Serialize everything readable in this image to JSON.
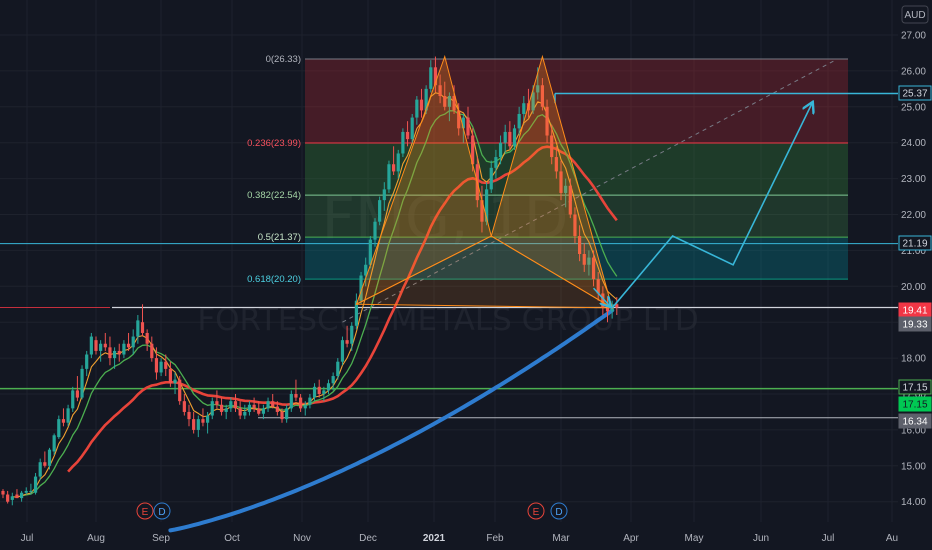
{
  "currency": "AUD",
  "watermark": {
    "symbol": "FMG, 1D",
    "name": "FORTESCUE METALS GROUP LTD"
  },
  "colors": {
    "bg": "#131722",
    "up": "#26a69a",
    "down": "#ef5350",
    "sma_long": "#2e7ccf",
    "ema_red": "#e8443a",
    "ema_green": "#4caf50",
    "ema_orange": "#f0a030",
    "projection": "#38b6d8",
    "pattern": "#ff8c1a"
  },
  "chart_data": {
    "type": "candlestick",
    "symbol": "FMG",
    "timeframe": "1D",
    "title": "FORTESCUE METALS GROUP LTD",
    "currency": "AUD",
    "ylim": [
      13.3,
      27.5
    ],
    "y_ticks": [
      "14.00",
      "15.00",
      "16.00",
      "17.00",
      "18.00",
      "19.00",
      "20.00",
      "21.00",
      "22.00",
      "23.00",
      "24.00",
      "25.00",
      "26.00",
      "27.00"
    ],
    "x_ticks": [
      "Jul",
      "Aug",
      "Sep",
      "Oct",
      "Nov",
      "Dec",
      "2021",
      "Feb",
      "Mar",
      "Apr",
      "May",
      "Jun",
      "Jul",
      "Au"
    ],
    "fibonacci": [
      {
        "level": "0",
        "price": 26.33,
        "label": "0(26.33)"
      },
      {
        "level": "0.236",
        "price": 23.99,
        "label": "0.236(23.99)"
      },
      {
        "level": "0.382",
        "price": 22.54,
        "label": "0.382(22.54)"
      },
      {
        "level": "0.5",
        "price": 21.37,
        "label": "0.5(21.37)"
      },
      {
        "level": "0.618",
        "price": 20.2,
        "label": "0.618(20.20)"
      }
    ],
    "price_tags": [
      {
        "value": "25.37",
        "kind": "outline"
      },
      {
        "value": "21.19",
        "kind": "outline"
      },
      {
        "value": "19.41",
        "kind": "filled-red"
      },
      {
        "value": "19.33",
        "kind": "gray"
      },
      {
        "value": "17.15",
        "kind": "outline"
      },
      {
        "value": "17.15",
        "kind": "filled-green"
      },
      {
        "value": "16.34",
        "kind": "gray"
      }
    ],
    "horizontal_lines": [
      {
        "price": 21.19,
        "color": "#38b6d8"
      },
      {
        "price": 19.41,
        "color": "#d1d4dc"
      },
      {
        "price": 17.15,
        "color": "#4caf50"
      },
      {
        "price": 16.34,
        "color": "#b2b5be"
      }
    ],
    "events": [
      {
        "date_index": 29,
        "items": [
          "E",
          "D"
        ]
      },
      {
        "date_index": 118,
        "items": [
          "E",
          "D"
        ]
      }
    ],
    "projection_points": [
      {
        "t": 131,
        "p": 19.4
      },
      {
        "t": 144,
        "p": 21.4
      },
      {
        "t": 157,
        "p": 20.6
      },
      {
        "t": 174,
        "p": 25.1
      }
    ],
    "double_top_points": [
      {
        "t": 76,
        "p": 19.5
      },
      {
        "t": 95,
        "p": 26.4
      },
      {
        "t": 105,
        "p": 21.4
      },
      {
        "t": 116,
        "p": 26.4
      },
      {
        "t": 131,
        "p": 19.4
      }
    ],
    "trendline": {
      "t1": 73,
      "p1": 19.0,
      "t2": 179,
      "p2": 26.3
    },
    "ohlc": [
      [
        14.3,
        14.35,
        14.1,
        14.2
      ],
      [
        14.2,
        14.3,
        13.95,
        14.0
      ],
      [
        14.05,
        14.25,
        13.9,
        14.15
      ],
      [
        14.2,
        14.35,
        14.1,
        14.1
      ],
      [
        14.1,
        14.3,
        14.0,
        14.25
      ],
      [
        14.25,
        14.4,
        14.2,
        14.3
      ],
      [
        14.3,
        14.5,
        14.2,
        14.3
      ],
      [
        14.25,
        14.8,
        14.2,
        14.7
      ],
      [
        14.7,
        15.2,
        14.6,
        15.1
      ],
      [
        15.1,
        15.4,
        14.95,
        15.0
      ],
      [
        15.0,
        15.5,
        14.9,
        15.45
      ],
      [
        15.4,
        15.9,
        15.3,
        15.85
      ],
      [
        15.8,
        16.4,
        15.75,
        16.3
      ],
      [
        16.3,
        16.6,
        16.1,
        16.2
      ],
      [
        16.2,
        16.7,
        16.1,
        16.6
      ],
      [
        16.6,
        17.2,
        16.5,
        17.1
      ],
      [
        17.1,
        17.5,
        16.8,
        16.9
      ],
      [
        16.9,
        17.8,
        16.85,
        17.7
      ],
      [
        17.7,
        18.2,
        17.5,
        18.1
      ],
      [
        18.1,
        18.7,
        18.0,
        18.6
      ],
      [
        18.5,
        18.6,
        18.1,
        18.2
      ],
      [
        18.2,
        18.5,
        17.9,
        18.4
      ],
      [
        18.4,
        18.7,
        18.2,
        18.3
      ],
      [
        18.3,
        18.6,
        17.8,
        18.0
      ],
      [
        18.0,
        18.3,
        17.7,
        18.2
      ],
      [
        18.2,
        18.4,
        17.9,
        18.1
      ],
      [
        18.1,
        18.5,
        18.0,
        18.4
      ],
      [
        18.4,
        18.7,
        18.2,
        18.3
      ],
      [
        18.3,
        18.8,
        18.1,
        18.6
      ],
      [
        18.6,
        19.2,
        18.4,
        19.05
      ],
      [
        19.0,
        19.5,
        18.6,
        18.7
      ],
      [
        18.7,
        18.8,
        18.2,
        18.4
      ],
      [
        18.4,
        18.6,
        17.9,
        18.0
      ],
      [
        18.0,
        18.3,
        17.4,
        17.6
      ],
      [
        17.6,
        18.0,
        17.5,
        17.9
      ],
      [
        17.9,
        18.1,
        17.5,
        17.7
      ],
      [
        17.7,
        17.9,
        17.2,
        17.3
      ],
      [
        17.3,
        17.6,
        17.0,
        17.4
      ],
      [
        17.4,
        17.5,
        16.7,
        16.8
      ],
      [
        16.8,
        17.0,
        16.4,
        16.5
      ],
      [
        16.5,
        16.7,
        16.1,
        16.3
      ],
      [
        16.3,
        16.5,
        15.9,
        16.0
      ],
      [
        16.0,
        16.4,
        15.8,
        16.3
      ],
      [
        16.3,
        16.6,
        16.1,
        16.2
      ],
      [
        16.2,
        16.5,
        15.9,
        16.4
      ],
      [
        16.4,
        16.9,
        16.3,
        16.8
      ],
      [
        16.8,
        17.1,
        16.6,
        16.7
      ],
      [
        16.7,
        16.9,
        16.4,
        16.5
      ],
      [
        16.5,
        16.7,
        16.3,
        16.6
      ],
      [
        16.6,
        16.9,
        16.5,
        16.8
      ],
      [
        16.8,
        17.0,
        16.5,
        16.6
      ],
      [
        16.6,
        16.8,
        16.3,
        16.4
      ],
      [
        16.4,
        16.7,
        16.3,
        16.5
      ],
      [
        16.5,
        16.8,
        16.4,
        16.7
      ],
      [
        16.7,
        16.9,
        16.5,
        16.6
      ],
      [
        16.6,
        16.8,
        16.4,
        16.45
      ],
      [
        16.45,
        16.7,
        16.3,
        16.6
      ],
      [
        16.6,
        16.9,
        16.5,
        16.8
      ],
      [
        16.8,
        17.0,
        16.6,
        16.65
      ],
      [
        16.65,
        16.8,
        16.4,
        16.5
      ],
      [
        16.5,
        16.6,
        16.2,
        16.3
      ],
      [
        16.3,
        16.7,
        16.2,
        16.6
      ],
      [
        16.6,
        17.1,
        16.5,
        17.0
      ],
      [
        17.0,
        17.4,
        16.8,
        16.9
      ],
      [
        16.9,
        17.0,
        16.5,
        16.6
      ],
      [
        16.6,
        16.8,
        16.4,
        16.7
      ],
      [
        16.7,
        17.0,
        16.6,
        16.9
      ],
      [
        16.9,
        17.3,
        16.8,
        17.2
      ],
      [
        17.2,
        17.4,
        16.9,
        17.0
      ],
      [
        17.0,
        17.2,
        16.8,
        17.1
      ],
      [
        17.1,
        17.4,
        17.0,
        17.3
      ],
      [
        17.3,
        17.6,
        17.1,
        17.5
      ],
      [
        17.5,
        18.0,
        17.4,
        17.9
      ],
      [
        17.9,
        18.6,
        17.8,
        18.5
      ],
      [
        18.5,
        18.9,
        18.3,
        18.4
      ],
      [
        18.4,
        19.0,
        18.2,
        18.9
      ],
      [
        18.9,
        19.8,
        18.8,
        19.6
      ],
      [
        19.6,
        20.4,
        19.5,
        20.3
      ],
      [
        20.3,
        20.8,
        20.0,
        20.6
      ],
      [
        20.6,
        21.4,
        20.5,
        21.3
      ],
      [
        21.3,
        21.9,
        21.1,
        21.8
      ],
      [
        21.8,
        22.5,
        21.7,
        22.4
      ],
      [
        22.4,
        22.9,
        22.1,
        22.7
      ],
      [
        22.7,
        23.5,
        22.6,
        23.4
      ],
      [
        23.4,
        23.9,
        23.1,
        23.2
      ],
      [
        23.2,
        23.8,
        23.0,
        23.7
      ],
      [
        23.7,
        24.4,
        23.6,
        24.3
      ],
      [
        24.3,
        24.6,
        23.9,
        24.1
      ],
      [
        24.1,
        24.8,
        24.0,
        24.7
      ],
      [
        24.7,
        25.3,
        24.5,
        25.2
      ],
      [
        25.2,
        25.5,
        24.7,
        24.9
      ],
      [
        24.9,
        25.6,
        24.8,
        25.5
      ],
      [
        25.5,
        26.3,
        25.4,
        26.1
      ],
      [
        26.1,
        26.4,
        25.4,
        25.6
      ],
      [
        25.6,
        25.9,
        25.1,
        25.3
      ],
      [
        25.3,
        25.7,
        24.9,
        25.0
      ],
      [
        25.0,
        25.4,
        24.6,
        25.3
      ],
      [
        25.3,
        25.6,
        24.8,
        24.9
      ],
      [
        24.9,
        25.1,
        24.2,
        24.4
      ],
      [
        24.4,
        24.8,
        24.0,
        24.7
      ],
      [
        24.7,
        25.0,
        24.1,
        24.2
      ],
      [
        24.2,
        24.4,
        23.2,
        23.4
      ],
      [
        23.4,
        23.6,
        22.2,
        22.4
      ],
      [
        22.4,
        22.8,
        21.5,
        21.8
      ],
      [
        21.8,
        22.9,
        21.7,
        22.7
      ],
      [
        22.7,
        23.5,
        22.6,
        23.3
      ],
      [
        23.3,
        23.8,
        23.0,
        23.6
      ],
      [
        23.6,
        24.2,
        23.4,
        24.0
      ],
      [
        24.0,
        24.5,
        23.7,
        24.3
      ],
      [
        24.3,
        24.6,
        23.8,
        23.9
      ],
      [
        23.9,
        24.5,
        23.8,
        24.4
      ],
      [
        24.4,
        25.0,
        24.2,
        24.8
      ],
      [
        24.8,
        25.3,
        24.5,
        25.1
      ],
      [
        25.1,
        25.5,
        24.7,
        24.9
      ],
      [
        24.9,
        25.6,
        24.8,
        25.4
      ],
      [
        25.4,
        26.1,
        25.2,
        25.6
      ],
      [
        25.6,
        25.8,
        24.9,
        25.0
      ],
      [
        25.0,
        25.2,
        24.0,
        24.2
      ],
      [
        24.2,
        24.5,
        23.4,
        23.6
      ],
      [
        23.6,
        23.9,
        23.0,
        23.2
      ],
      [
        23.2,
        23.5,
        22.4,
        22.6
      ],
      [
        22.6,
        23.0,
        22.2,
        22.8
      ],
      [
        22.8,
        23.0,
        21.9,
        22.0
      ],
      [
        22.0,
        22.2,
        21.2,
        21.4
      ],
      [
        21.4,
        21.7,
        20.7,
        20.9
      ],
      [
        20.9,
        21.2,
        20.4,
        20.6
      ],
      [
        20.6,
        21.0,
        20.3,
        20.8
      ],
      [
        20.8,
        21.0,
        20.0,
        20.2
      ],
      [
        20.2,
        20.4,
        19.6,
        19.8
      ],
      [
        19.8,
        20.0,
        19.2,
        19.4
      ],
      [
        19.4,
        19.7,
        19.0,
        19.3
      ],
      [
        19.3,
        19.6,
        19.1,
        19.5
      ],
      [
        19.5,
        19.7,
        19.2,
        19.41
      ]
    ]
  }
}
